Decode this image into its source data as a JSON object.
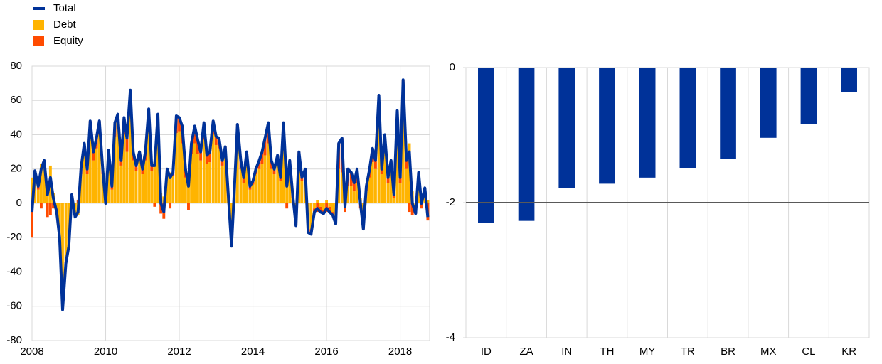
{
  "chart_data": [
    {
      "type": "combo",
      "x": [
        2008.0,
        2008.08,
        2008.17,
        2008.25,
        2008.33,
        2008.42,
        2008.5,
        2008.58,
        2008.67,
        2008.75,
        2008.83,
        2008.92,
        2009.0,
        2009.08,
        2009.17,
        2009.25,
        2009.33,
        2009.42,
        2009.5,
        2009.58,
        2009.67,
        2009.75,
        2009.83,
        2009.92,
        2010.0,
        2010.08,
        2010.17,
        2010.25,
        2010.33,
        2010.42,
        2010.5,
        2010.58,
        2010.67,
        2010.75,
        2010.83,
        2010.92,
        2011.0,
        2011.08,
        2011.17,
        2011.25,
        2011.33,
        2011.42,
        2011.5,
        2011.58,
        2011.67,
        2011.75,
        2011.83,
        2011.92,
        2012.0,
        2012.08,
        2012.17,
        2012.25,
        2012.33,
        2012.42,
        2012.5,
        2012.58,
        2012.67,
        2012.75,
        2012.83,
        2012.92,
        2013.0,
        2013.08,
        2013.17,
        2013.25,
        2013.33,
        2013.42,
        2013.5,
        2013.58,
        2013.67,
        2013.75,
        2013.83,
        2013.92,
        2014.0,
        2014.08,
        2014.17,
        2014.25,
        2014.33,
        2014.42,
        2014.5,
        2014.58,
        2014.67,
        2014.75,
        2014.83,
        2014.92,
        2015.0,
        2015.08,
        2015.17,
        2015.25,
        2015.33,
        2015.42,
        2015.5,
        2015.58,
        2015.67,
        2015.75,
        2015.83,
        2015.92,
        2016.0,
        2016.08,
        2016.17,
        2016.25,
        2016.33,
        2016.42,
        2016.5,
        2016.58,
        2016.67,
        2016.75,
        2016.83,
        2016.92,
        2017.0,
        2017.08,
        2017.17,
        2017.25,
        2017.33,
        2017.42,
        2017.5,
        2017.58,
        2017.67,
        2017.75,
        2017.83,
        2017.92,
        2018.0,
        2018.08,
        2018.17,
        2018.25,
        2018.33,
        2018.42,
        2018.5,
        2018.58,
        2018.67,
        2018.75
      ],
      "series": [
        {
          "name": "Total",
          "type": "line",
          "color": "#003299",
          "values": [
            -5,
            19,
            10,
            20,
            25,
            5,
            15,
            3,
            -5,
            -20,
            -62,
            -35,
            -25,
            5,
            -8,
            -5,
            20,
            35,
            20,
            48,
            30,
            38,
            48,
            20,
            0,
            31,
            10,
            47,
            52,
            25,
            50,
            38,
            66,
            30,
            22,
            30,
            20,
            30,
            55,
            22,
            22,
            52,
            0,
            -5,
            20,
            15,
            18,
            51,
            50,
            45,
            20,
            10,
            35,
            45,
            37,
            30,
            47,
            28,
            30,
            48,
            39,
            38,
            25,
            33,
            5,
            -25,
            10,
            46,
            25,
            15,
            30,
            10,
            13,
            20,
            25,
            30,
            38,
            47,
            25,
            20,
            28,
            15,
            47,
            10,
            25,
            5,
            -13,
            30,
            15,
            20,
            -17,
            -18,
            -5,
            -3,
            -5,
            -6,
            -3,
            -5,
            -7,
            -12,
            35,
            38,
            -2,
            20,
            18,
            12,
            20,
            0,
            -15,
            10,
            20,
            32,
            25,
            63,
            20,
            40,
            15,
            25,
            5,
            54,
            15,
            72,
            25,
            30,
            0,
            -6,
            18,
            0,
            9,
            -8
          ]
        },
        {
          "name": "Debt",
          "type": "bar",
          "color": "#ffb400",
          "values": [
            15,
            19,
            8,
            23,
            23,
            13,
            22,
            6,
            -3,
            -20,
            -60,
            -34,
            -25,
            4,
            -8,
            -7,
            17,
            30,
            17,
            40,
            25,
            32,
            40,
            17,
            0,
            26,
            8,
            39,
            47,
            22,
            40,
            30,
            51,
            25,
            19,
            26,
            17,
            25,
            45,
            19,
            24,
            44,
            6,
            4,
            18,
            18,
            16,
            41,
            42,
            35,
            15,
            14,
            29,
            35,
            29,
            25,
            37,
            23,
            24,
            40,
            34,
            32,
            22,
            27,
            5,
            -22,
            8,
            38,
            20,
            12,
            24,
            8,
            11,
            17,
            20,
            23,
            28,
            35,
            20,
            17,
            23,
            13,
            37,
            13,
            20,
            3,
            -10,
            25,
            13,
            17,
            -15,
            -15,
            -3,
            2,
            -2,
            -4,
            2,
            -2,
            -5,
            -10,
            20,
            18,
            3,
            10,
            10,
            7,
            12,
            3,
            -10,
            7,
            15,
            24,
            20,
            48,
            17,
            32,
            12,
            20,
            3,
            42,
            12,
            52,
            20,
            35,
            7,
            -3,
            16,
            3,
            7,
            2
          ]
        },
        {
          "name": "Equity",
          "type": "bar",
          "color": "#ff4b00",
          "values": [
            -20,
            0,
            2,
            -3,
            2,
            -8,
            -7,
            -3,
            -2,
            0,
            -2,
            -1,
            0,
            1,
            0,
            2,
            3,
            5,
            3,
            8,
            5,
            6,
            8,
            3,
            0,
            5,
            2,
            8,
            5,
            3,
            10,
            8,
            15,
            5,
            3,
            4,
            3,
            5,
            10,
            3,
            -2,
            8,
            -6,
            -9,
            2,
            -3,
            2,
            10,
            8,
            10,
            5,
            -4,
            6,
            10,
            8,
            5,
            10,
            5,
            6,
            8,
            5,
            6,
            3,
            6,
            0,
            -3,
            2,
            8,
            5,
            3,
            6,
            2,
            2,
            3,
            5,
            7,
            10,
            12,
            5,
            3,
            5,
            2,
            10,
            -3,
            5,
            2,
            -3,
            5,
            2,
            3,
            -2,
            -3,
            -2,
            -5,
            -3,
            -2,
            -5,
            -3,
            -2,
            -2,
            15,
            20,
            -5,
            10,
            8,
            5,
            8,
            -3,
            -5,
            3,
            5,
            8,
            5,
            15,
            3,
            8,
            3,
            5,
            2,
            12,
            3,
            20,
            5,
            -5,
            -7,
            -3,
            2,
            -3,
            2,
            -10
          ]
        }
      ],
      "xlim": [
        2008,
        2018.8
      ],
      "xticks": [
        2008,
        2010,
        2012,
        2014,
        2016,
        2018
      ],
      "ylim": [
        -80,
        80
      ],
      "yticks": [
        -80,
        -60,
        -40,
        -20,
        0,
        20,
        40,
        60,
        80
      ],
      "grid": true,
      "legend": "top-left"
    },
    {
      "type": "bar",
      "categories": [
        "ID",
        "ZA",
        "IN",
        "TH",
        "MY",
        "TR",
        "BR",
        "MX",
        "CL",
        "KR"
      ],
      "values": [
        -2.3,
        -2.27,
        -1.78,
        -1.72,
        -1.63,
        -1.49,
        -1.35,
        -1.04,
        -0.84,
        -0.36
      ],
      "color": "#003299",
      "ylim": [
        -4,
        0
      ],
      "yticks": [
        -4,
        -2,
        0
      ],
      "reference_line": -2
    }
  ]
}
